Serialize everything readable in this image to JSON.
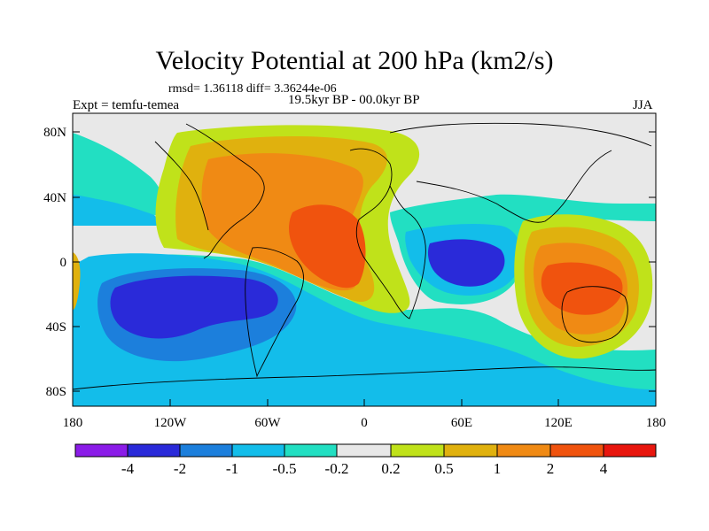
{
  "title": "Velocity Potential at 200 hPa (km2/s)",
  "stats": "rmsd= 1.36118 diff= 3.36244e-06",
  "experiment": "Expt = temfu-temea",
  "period": "19.5kyr BP - 00.0kyr BP",
  "season": "JJA",
  "lat_labels": [
    "80N",
    "40N",
    "0",
    "40S",
    "80S"
  ],
  "lon_labels": [
    "180",
    "120W",
    "60W",
    "0",
    "60E",
    "120E",
    "180"
  ],
  "colorbar": {
    "colors": [
      "#8b1ce8",
      "#2a2ad9",
      "#1c7fdc",
      "#13bdea",
      "#22dfc2",
      "#e8e8e8",
      "#c0e21a",
      "#e0b10e",
      "#f08a14",
      "#f0530e",
      "#e8160e"
    ],
    "labels": [
      "-4",
      "-2",
      "-1",
      "-0.5",
      "-0.2",
      "0.2",
      "0.5",
      "1",
      "2",
      "4"
    ]
  },
  "fill_colors": {
    "neutral": "#e8e8e8",
    "pos1": "#c0e21a",
    "pos2": "#e0b10e",
    "pos3": "#f08a14",
    "pos4": "#f0530e",
    "neg1": "#22dfc2",
    "neg2": "#13bdea",
    "neg3": "#1c7fdc",
    "neg4": "#2a2ad9"
  }
}
